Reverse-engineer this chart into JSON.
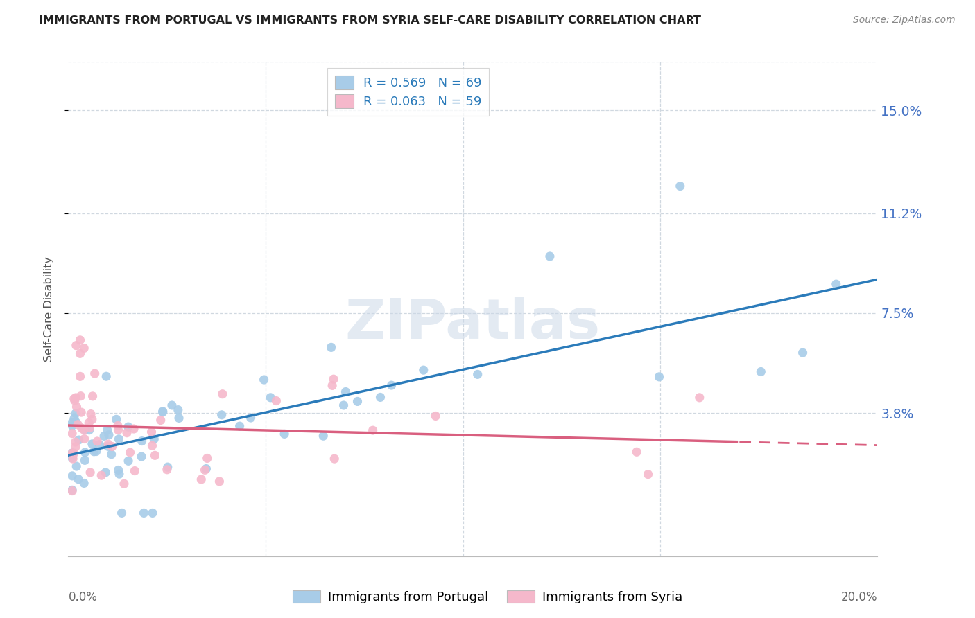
{
  "title": "IMMIGRANTS FROM PORTUGAL VS IMMIGRANTS FROM SYRIA SELF-CARE DISABILITY CORRELATION CHART",
  "source": "Source: ZipAtlas.com",
  "ylabel": "Self-Care Disability",
  "y_tick_labels": [
    "15.0%",
    "11.2%",
    "7.5%",
    "3.8%"
  ],
  "y_tick_values": [
    0.15,
    0.112,
    0.075,
    0.038
  ],
  "xlim": [
    0.0,
    0.205
  ],
  "ylim": [
    -0.015,
    0.168
  ],
  "legend_blue_r": "R = 0.569",
  "legend_blue_n": "N = 69",
  "legend_pink_r": "R = 0.063",
  "legend_pink_n": "N = 59",
  "legend_label_blue": "Immigrants from Portugal",
  "legend_label_pink": "Immigrants from Syria",
  "blue_scatter_color": "#a8cce8",
  "pink_scatter_color": "#f5b8cb",
  "blue_line_color": "#2b7bba",
  "pink_line_color": "#d95f7f",
  "watermark": "ZIPatlas",
  "grid_color": "#d0d8e0",
  "title_color": "#222222",
  "source_color": "#888888",
  "ylabel_color": "#555555",
  "tick_label_color": "#4472c4",
  "bottom_label_color": "#666666"
}
